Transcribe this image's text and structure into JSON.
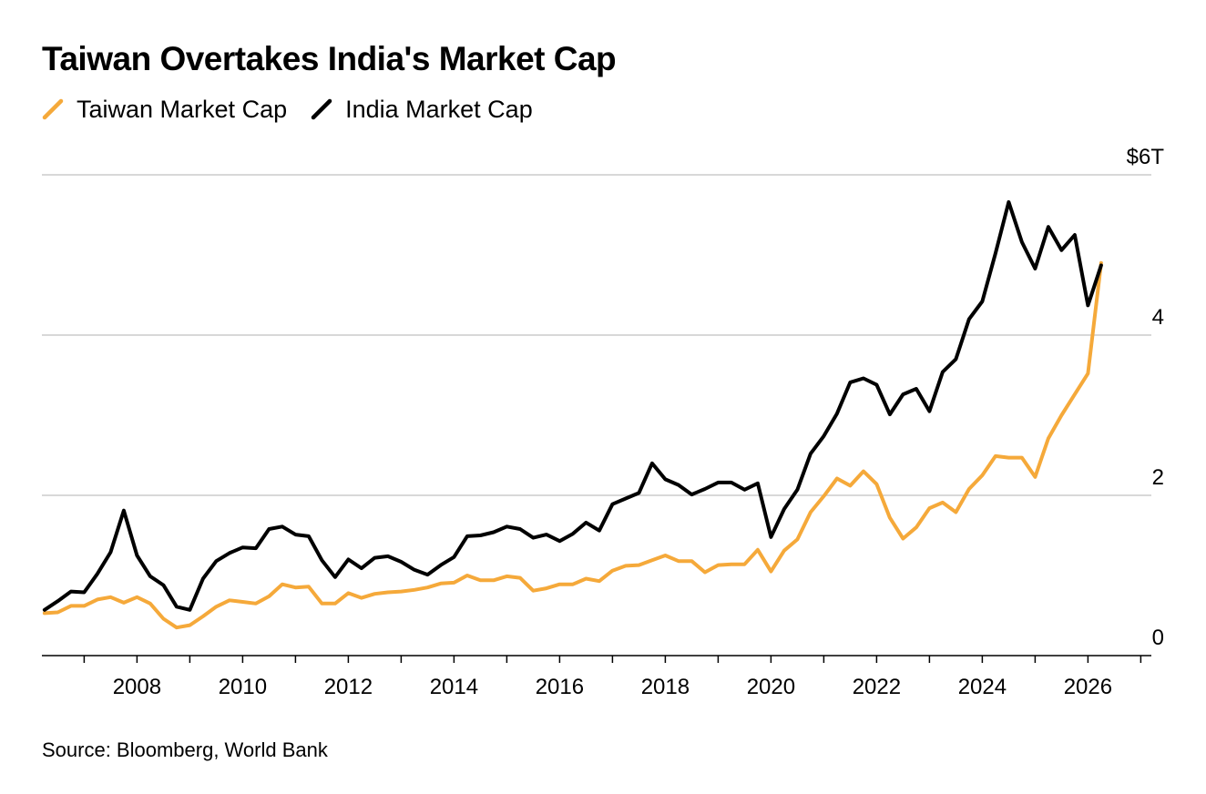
{
  "title": "Taiwan Overtakes India's Market Cap",
  "source": "Source: Bloomberg, World Bank",
  "colors": {
    "taiwan": "#f5a93a",
    "india": "#000000",
    "grid": "#cccccc",
    "axis": "#000000"
  },
  "chart_data": {
    "type": "line",
    "title": "Taiwan Overtakes India's Market Cap",
    "xlabel": "",
    "ylabel": "",
    "xlim": [
      2006.2,
      2027.2
    ],
    "ylim": [
      0,
      6
    ],
    "grid": true,
    "legend_position": "top-left",
    "y_ticks": [
      {
        "value": 0,
        "label": "0"
      },
      {
        "value": 2,
        "label": "2"
      },
      {
        "value": 4,
        "label": "4"
      },
      {
        "value": 6,
        "label": "$6T"
      }
    ],
    "x_ticks": [
      {
        "value": 2008,
        "label": "2008"
      },
      {
        "value": 2010,
        "label": "2010"
      },
      {
        "value": 2012,
        "label": "2012"
      },
      {
        "value": 2014,
        "label": "2014"
      },
      {
        "value": 2016,
        "label": "2016"
      },
      {
        "value": 2018,
        "label": "2018"
      },
      {
        "value": 2020,
        "label": "2020"
      },
      {
        "value": 2022,
        "label": "2022"
      },
      {
        "value": 2024,
        "label": "2024"
      },
      {
        "value": 2026,
        "label": "2026"
      }
    ],
    "x": [
      2006.25,
      2006.5,
      2006.75,
      2007.0,
      2007.25,
      2007.5,
      2007.75,
      2008.0,
      2008.25,
      2008.5,
      2008.75,
      2009.0,
      2009.25,
      2009.5,
      2009.75,
      2010.0,
      2010.25,
      2010.5,
      2010.75,
      2011.0,
      2011.25,
      2011.5,
      2011.75,
      2012.0,
      2012.25,
      2012.5,
      2012.75,
      2013.0,
      2013.25,
      2013.5,
      2013.75,
      2014.0,
      2014.25,
      2014.5,
      2014.75,
      2015.0,
      2015.25,
      2015.5,
      2015.75,
      2016.0,
      2016.25,
      2016.5,
      2016.75,
      2017.0,
      2017.25,
      2017.5,
      2017.75,
      2018.0,
      2018.25,
      2018.5,
      2018.75,
      2019.0,
      2019.25,
      2019.5,
      2019.75,
      2020.0,
      2020.25,
      2020.5,
      2020.75,
      2021.0,
      2021.25,
      2021.5,
      2021.75,
      2022.0,
      2022.25,
      2022.5,
      2022.75,
      2023.0,
      2023.25,
      2023.5,
      2023.75,
      2024.0,
      2024.25,
      2024.5,
      2024.75,
      2025.0,
      2025.25,
      2025.5,
      2025.75,
      2026.0,
      2026.25
    ],
    "series": [
      {
        "name": "Taiwan Market Cap",
        "color": "#f5a93a",
        "values": [
          0.53,
          0.54,
          0.62,
          0.62,
          0.7,
          0.73,
          0.66,
          0.73,
          0.65,
          0.46,
          0.35,
          0.38,
          0.49,
          0.61,
          0.69,
          0.67,
          0.65,
          0.74,
          0.89,
          0.85,
          0.86,
          0.65,
          0.65,
          0.78,
          0.72,
          0.77,
          0.79,
          0.8,
          0.82,
          0.85,
          0.9,
          0.91,
          1.0,
          0.94,
          0.94,
          0.99,
          0.97,
          0.81,
          0.84,
          0.89,
          0.89,
          0.96,
          0.93,
          1.06,
          1.12,
          1.13,
          1.19,
          1.25,
          1.18,
          1.18,
          1.04,
          1.13,
          1.14,
          1.14,
          1.32,
          1.05,
          1.31,
          1.45,
          1.79,
          1.99,
          2.21,
          2.12,
          2.3,
          2.14,
          1.72,
          1.46,
          1.6,
          1.84,
          1.91,
          1.79,
          2.08,
          2.25,
          2.49,
          2.47,
          2.47,
          2.23,
          2.71,
          3.0,
          3.26,
          3.52,
          4.9
        ]
      },
      {
        "name": "India Market Cap",
        "color": "#000000",
        "values": [
          0.57,
          0.68,
          0.8,
          0.79,
          1.02,
          1.29,
          1.81,
          1.25,
          0.99,
          0.88,
          0.61,
          0.57,
          0.96,
          1.18,
          1.28,
          1.35,
          1.34,
          1.58,
          1.61,
          1.51,
          1.49,
          1.19,
          0.98,
          1.2,
          1.09,
          1.22,
          1.24,
          1.17,
          1.07,
          1.01,
          1.13,
          1.23,
          1.49,
          1.5,
          1.54,
          1.61,
          1.58,
          1.47,
          1.51,
          1.43,
          1.52,
          1.66,
          1.56,
          1.89,
          1.96,
          2.03,
          2.4,
          2.2,
          2.13,
          2.01,
          2.08,
          2.16,
          2.16,
          2.07,
          2.15,
          1.48,
          1.83,
          2.07,
          2.52,
          2.74,
          3.02,
          3.41,
          3.46,
          3.38,
          3.01,
          3.26,
          3.33,
          3.05,
          3.54,
          3.7,
          4.2,
          4.42,
          5.02,
          5.66,
          5.16,
          4.83,
          5.35,
          5.06,
          5.25,
          4.37,
          4.87
        ]
      }
    ]
  }
}
